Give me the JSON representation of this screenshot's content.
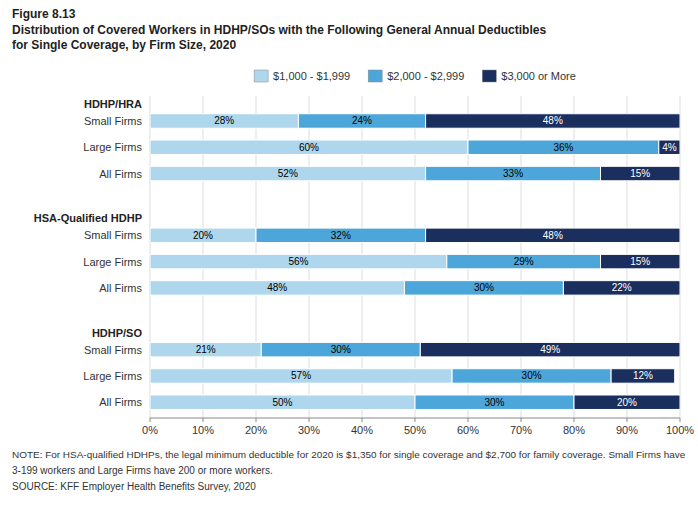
{
  "chart_data": {
    "type": "bar",
    "orientation": "horizontal",
    "stacked": true,
    "title": "Figure 8.13",
    "subtitle": [
      "Distribution of Covered Workers in HDHP/SOs with the Following General Annual Deductibles",
      "for Single Coverage, by Firm Size, 2020"
    ],
    "groups": [
      "HDHP/HRA",
      "HSA-Qualified HDHP",
      "HDHP/SO"
    ],
    "categories": [
      "Small Firms",
      "Large Firms",
      "All Firms",
      "Small Firms",
      "Large Firms",
      "All Firms",
      "Small Firms",
      "Large Firms",
      "All Firms"
    ],
    "series": [
      {
        "name": "$1,000 - $1,999",
        "color": "#aed6ed",
        "values": [
          28,
          60,
          52,
          20,
          56,
          48,
          21,
          57,
          50
        ],
        "value_labels": [
          "28%",
          "60%",
          "52%",
          "20%",
          "56%",
          "48%",
          "21%",
          "57%",
          "50%"
        ]
      },
      {
        "name": "$2,000 - $2,999",
        "color": "#4da6d9",
        "values": [
          24,
          36,
          33,
          32,
          29,
          30,
          30,
          30,
          30
        ],
        "value_labels": [
          "24%",
          "36%",
          "33%",
          "32%",
          "29%",
          "30%",
          "30%",
          "30%",
          "30%"
        ]
      },
      {
        "name": "$3,000 or More",
        "color": "#1a2f5e",
        "values": [
          48,
          4,
          15,
          48,
          15,
          22,
          49,
          12,
          20
        ],
        "value_labels": [
          "48%",
          "4%",
          "15%",
          "48%",
          "15%",
          "22%",
          "49%",
          "12%",
          "20%"
        ]
      }
    ],
    "xlim": [
      0,
      100
    ],
    "xticks": [
      {
        "value": 0,
        "label": "0%"
      },
      {
        "value": 10,
        "label": "10%"
      },
      {
        "value": 20,
        "label": "20%"
      },
      {
        "value": 30,
        "label": "30%"
      },
      {
        "value": 40,
        "label": "40%"
      },
      {
        "value": 50,
        "label": "50%"
      },
      {
        "value": 60,
        "label": "60%"
      },
      {
        "value": 70,
        "label": "70%"
      },
      {
        "value": 80,
        "label": "80%"
      },
      {
        "value": 90,
        "label": "90%"
      },
      {
        "value": 100,
        "label": "100%"
      }
    ],
    "grid": true,
    "legend": "top",
    "data_labels": true,
    "annotations": [
      "NOTE:  For HSA-qualified HDHPs, the legal minimum deductible for 2020 is $1,350 for single coverage and $2,700 for family coverage. Small Firms have",
      "3-199 workers and Large Firms have 200 or more workers.",
      "SOURCE:  KFF Employer Health Benefits Survey, 2020"
    ]
  }
}
